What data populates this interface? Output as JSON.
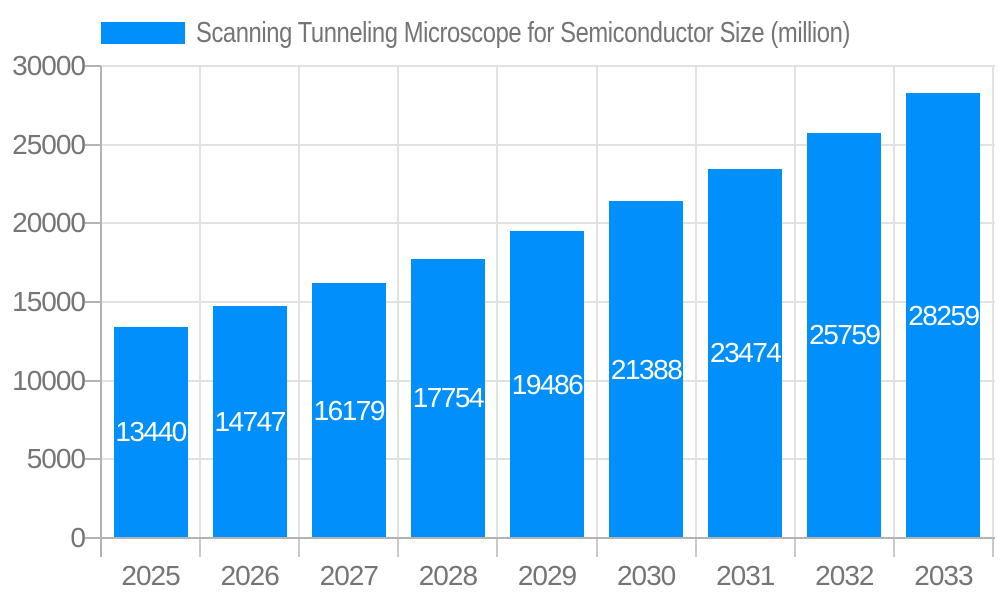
{
  "chart_data": {
    "type": "bar",
    "title": "Scanning Tunneling Microscope for Semiconductor Size (million)",
    "legend": {
      "position": "top-left",
      "label": "Scanning Tunneling Microscope for Semiconductor Size (million)"
    },
    "categories": [
      "2025",
      "2026",
      "2027",
      "2028",
      "2029",
      "2030",
      "2031",
      "2032",
      "2033"
    ],
    "series": [
      {
        "name": "Scanning Tunneling Microscope for Semiconductor Size (million)",
        "values": [
          13440,
          14747,
          16179,
          17754,
          19486,
          21388,
          23474,
          25759,
          28259
        ]
      }
    ],
    "value_labels_shown": true,
    "xlabel": "",
    "ylabel": "",
    "ylim": [
      0,
      30000
    ],
    "yticks": [
      0,
      5000,
      10000,
      15000,
      20000,
      25000,
      30000
    ],
    "grid": true,
    "colors": {
      "bar": "#008FFB",
      "value_label": "#FFFFFF",
      "axis_text": "#757575",
      "gridline": "#E2E2E2",
      "axis_line": "#B3B3B3",
      "x_tick": "#C9C9C9",
      "background": "#FFFFFF"
    }
  }
}
